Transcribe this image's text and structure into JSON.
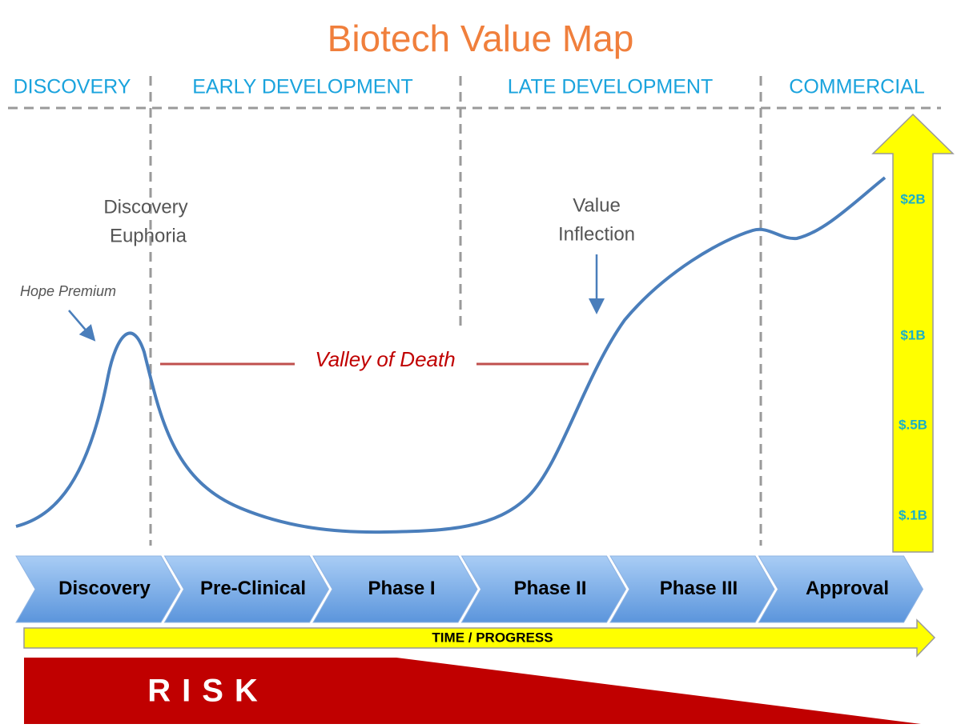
{
  "title": "Biotech Value Map",
  "phases": [
    "DISCOVERY",
    "EARLY DEVELOPMENT",
    "LATE DEVELOPMENT",
    "COMMERCIAL"
  ],
  "annotations": {
    "hope_premium": "Hope Premium",
    "discovery_euphoria": [
      "Discovery",
      "Euphoria"
    ],
    "value_inflection": [
      "Value",
      "Inflection"
    ],
    "valley_of_death": "Valley of Death"
  },
  "value_scale": [
    "$2B",
    "$1B",
    "$.5B",
    "$.1B"
  ],
  "stages": [
    "Discovery",
    "Pre-Clinical",
    "Phase I",
    "Phase II",
    "Phase III",
    "Approval"
  ],
  "time_label": "TIME / PROGRESS",
  "risk_label": "RISK"
}
